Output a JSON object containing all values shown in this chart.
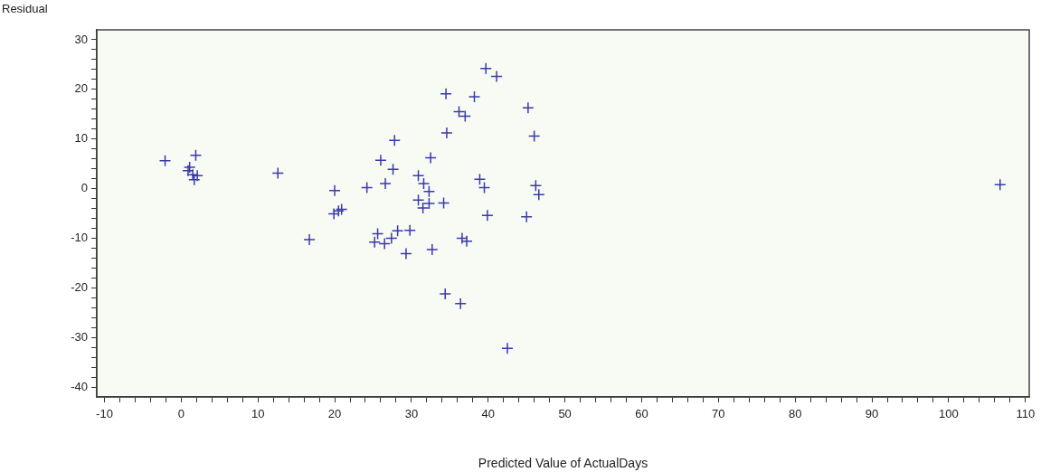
{
  "chart_data": {
    "type": "scatter",
    "xlabel": "Predicted Value of ActualDays",
    "ylabel": "Residual",
    "marker": "cross",
    "grid": false,
    "xlim": [
      -11,
      110.5
    ],
    "ylim": [
      -42,
      32
    ],
    "xticks": [
      -10,
      {
        "value": -8,
        "label": null
      },
      {
        "value": -6,
        "label": null
      },
      {
        "value": -4,
        "label": null
      },
      {
        "value": -2,
        "label": null
      },
      0,
      {
        "value": 2,
        "label": null
      },
      {
        "value": 4,
        "label": null
      },
      {
        "value": 6,
        "label": null
      },
      {
        "value": 8,
        "label": null
      },
      10,
      {
        "value": 12,
        "label": null
      },
      {
        "value": 14,
        "label": null
      },
      {
        "value": 16,
        "label": null
      },
      {
        "value": 18,
        "label": null
      },
      20,
      {
        "value": 22,
        "label": null
      },
      {
        "value": 24,
        "label": null
      },
      {
        "value": 26,
        "label": null
      },
      {
        "value": 28,
        "label": null
      },
      30,
      {
        "value": 32,
        "label": null
      },
      {
        "value": 34,
        "label": null
      },
      {
        "value": 36,
        "label": null
      },
      {
        "value": 38,
        "label": null
      },
      40,
      {
        "value": 42,
        "label": null
      },
      {
        "value": 44,
        "label": null
      },
      {
        "value": 46,
        "label": null
      },
      {
        "value": 48,
        "label": null
      },
      50,
      {
        "value": 52,
        "label": null
      },
      {
        "value": 54,
        "label": null
      },
      {
        "value": 56,
        "label": null
      },
      {
        "value": 58,
        "label": null
      },
      60,
      {
        "value": 62,
        "label": null
      },
      {
        "value": 64,
        "label": null
      },
      {
        "value": 66,
        "label": null
      },
      {
        "value": 68,
        "label": null
      },
      70,
      {
        "value": 72,
        "label": null
      },
      {
        "value": 74,
        "label": null
      },
      {
        "value": 76,
        "label": null
      },
      {
        "value": 78,
        "label": null
      },
      80,
      {
        "value": 82,
        "label": null
      },
      {
        "value": 84,
        "label": null
      },
      {
        "value": 86,
        "label": null
      },
      {
        "value": 88,
        "label": null
      },
      90,
      {
        "value": 92,
        "label": null
      },
      {
        "value": 94,
        "label": null
      },
      {
        "value": 96,
        "label": null
      },
      {
        "value": 98,
        "label": null
      },
      100,
      {
        "value": 102,
        "label": null
      },
      {
        "value": 104,
        "label": null
      },
      {
        "value": 106,
        "label": null
      },
      {
        "value": 108,
        "label": null
      },
      110
    ],
    "yticks": [
      -40,
      {
        "value": -38,
        "label": null
      },
      {
        "value": -36,
        "label": null
      },
      {
        "value": -34,
        "label": null
      },
      {
        "value": -32,
        "label": null
      },
      -30,
      {
        "value": -28,
        "label": null
      },
      {
        "value": -26,
        "label": null
      },
      {
        "value": -24,
        "label": null
      },
      {
        "value": -22,
        "label": null
      },
      -20,
      {
        "value": -18,
        "label": null
      },
      {
        "value": -16,
        "label": null
      },
      {
        "value": -14,
        "label": null
      },
      {
        "value": -12,
        "label": null
      },
      -10,
      {
        "value": -8,
        "label": null
      },
      {
        "value": -6,
        "label": null
      },
      {
        "value": -4,
        "label": null
      },
      {
        "value": -2,
        "label": null
      },
      0,
      {
        "value": 2,
        "label": null
      },
      {
        "value": 4,
        "label": null
      },
      {
        "value": 6,
        "label": null
      },
      {
        "value": 8,
        "label": null
      },
      10,
      {
        "value": 12,
        "label": null
      },
      {
        "value": 14,
        "label": null
      },
      {
        "value": 16,
        "label": null
      },
      {
        "value": 18,
        "label": null
      },
      20,
      {
        "value": 22,
        "label": null
      },
      {
        "value": 24,
        "label": null
      },
      {
        "value": 26,
        "label": null
      },
      {
        "value": 28,
        "label": null
      },
      30
    ],
    "series": [
      {
        "color": "#3a3aa8",
        "x": [
          -2.1,
          1.9,
          1.1,
          0.9,
          1.5,
          2.1,
          1.7,
          12.6,
          16.7,
          20.0,
          19.9,
          20.5,
          20.9,
          24.2,
          26.0,
          26.6,
          27.6,
          27.8,
          32.5,
          30.9,
          31.6,
          32.3,
          30.9,
          32.3,
          31.5,
          34.2,
          25.6,
          25.2,
          26.5,
          27.4,
          28.2,
          29.8,
          29.3,
          32.7,
          34.4,
          36.4,
          34.5,
          34.6,
          36.2,
          37.0,
          36.6,
          37.2,
          39.7,
          41.1,
          38.2,
          45.2,
          46.0,
          38.9,
          39.5,
          46.2,
          46.6,
          39.9,
          45.0,
          42.5,
          106.7
        ],
        "values": [
          5.6,
          6.7,
          4.3,
          3.6,
          2.8,
          2.6,
          1.8,
          3.1,
          -10.3,
          -0.4,
          -5.1,
          -4.5,
          -4.2,
          0.2,
          5.7,
          1.0,
          3.9,
          9.7,
          6.2,
          2.6,
          1.0,
          -0.6,
          -2.3,
          -3.0,
          -3.9,
          -2.9,
          -9.1,
          -10.8,
          -11.1,
          -10.0,
          -8.5,
          -8.4,
          -13.1,
          -12.3,
          -21.2,
          -23.2,
          19.1,
          11.2,
          15.5,
          14.6,
          -10.0,
          -10.6,
          24.2,
          22.6,
          18.5,
          16.3,
          10.6,
          1.9,
          0.2,
          0.6,
          -1.2,
          -5.4,
          -5.7,
          -32.2,
          0.8
        ]
      }
    ]
  }
}
